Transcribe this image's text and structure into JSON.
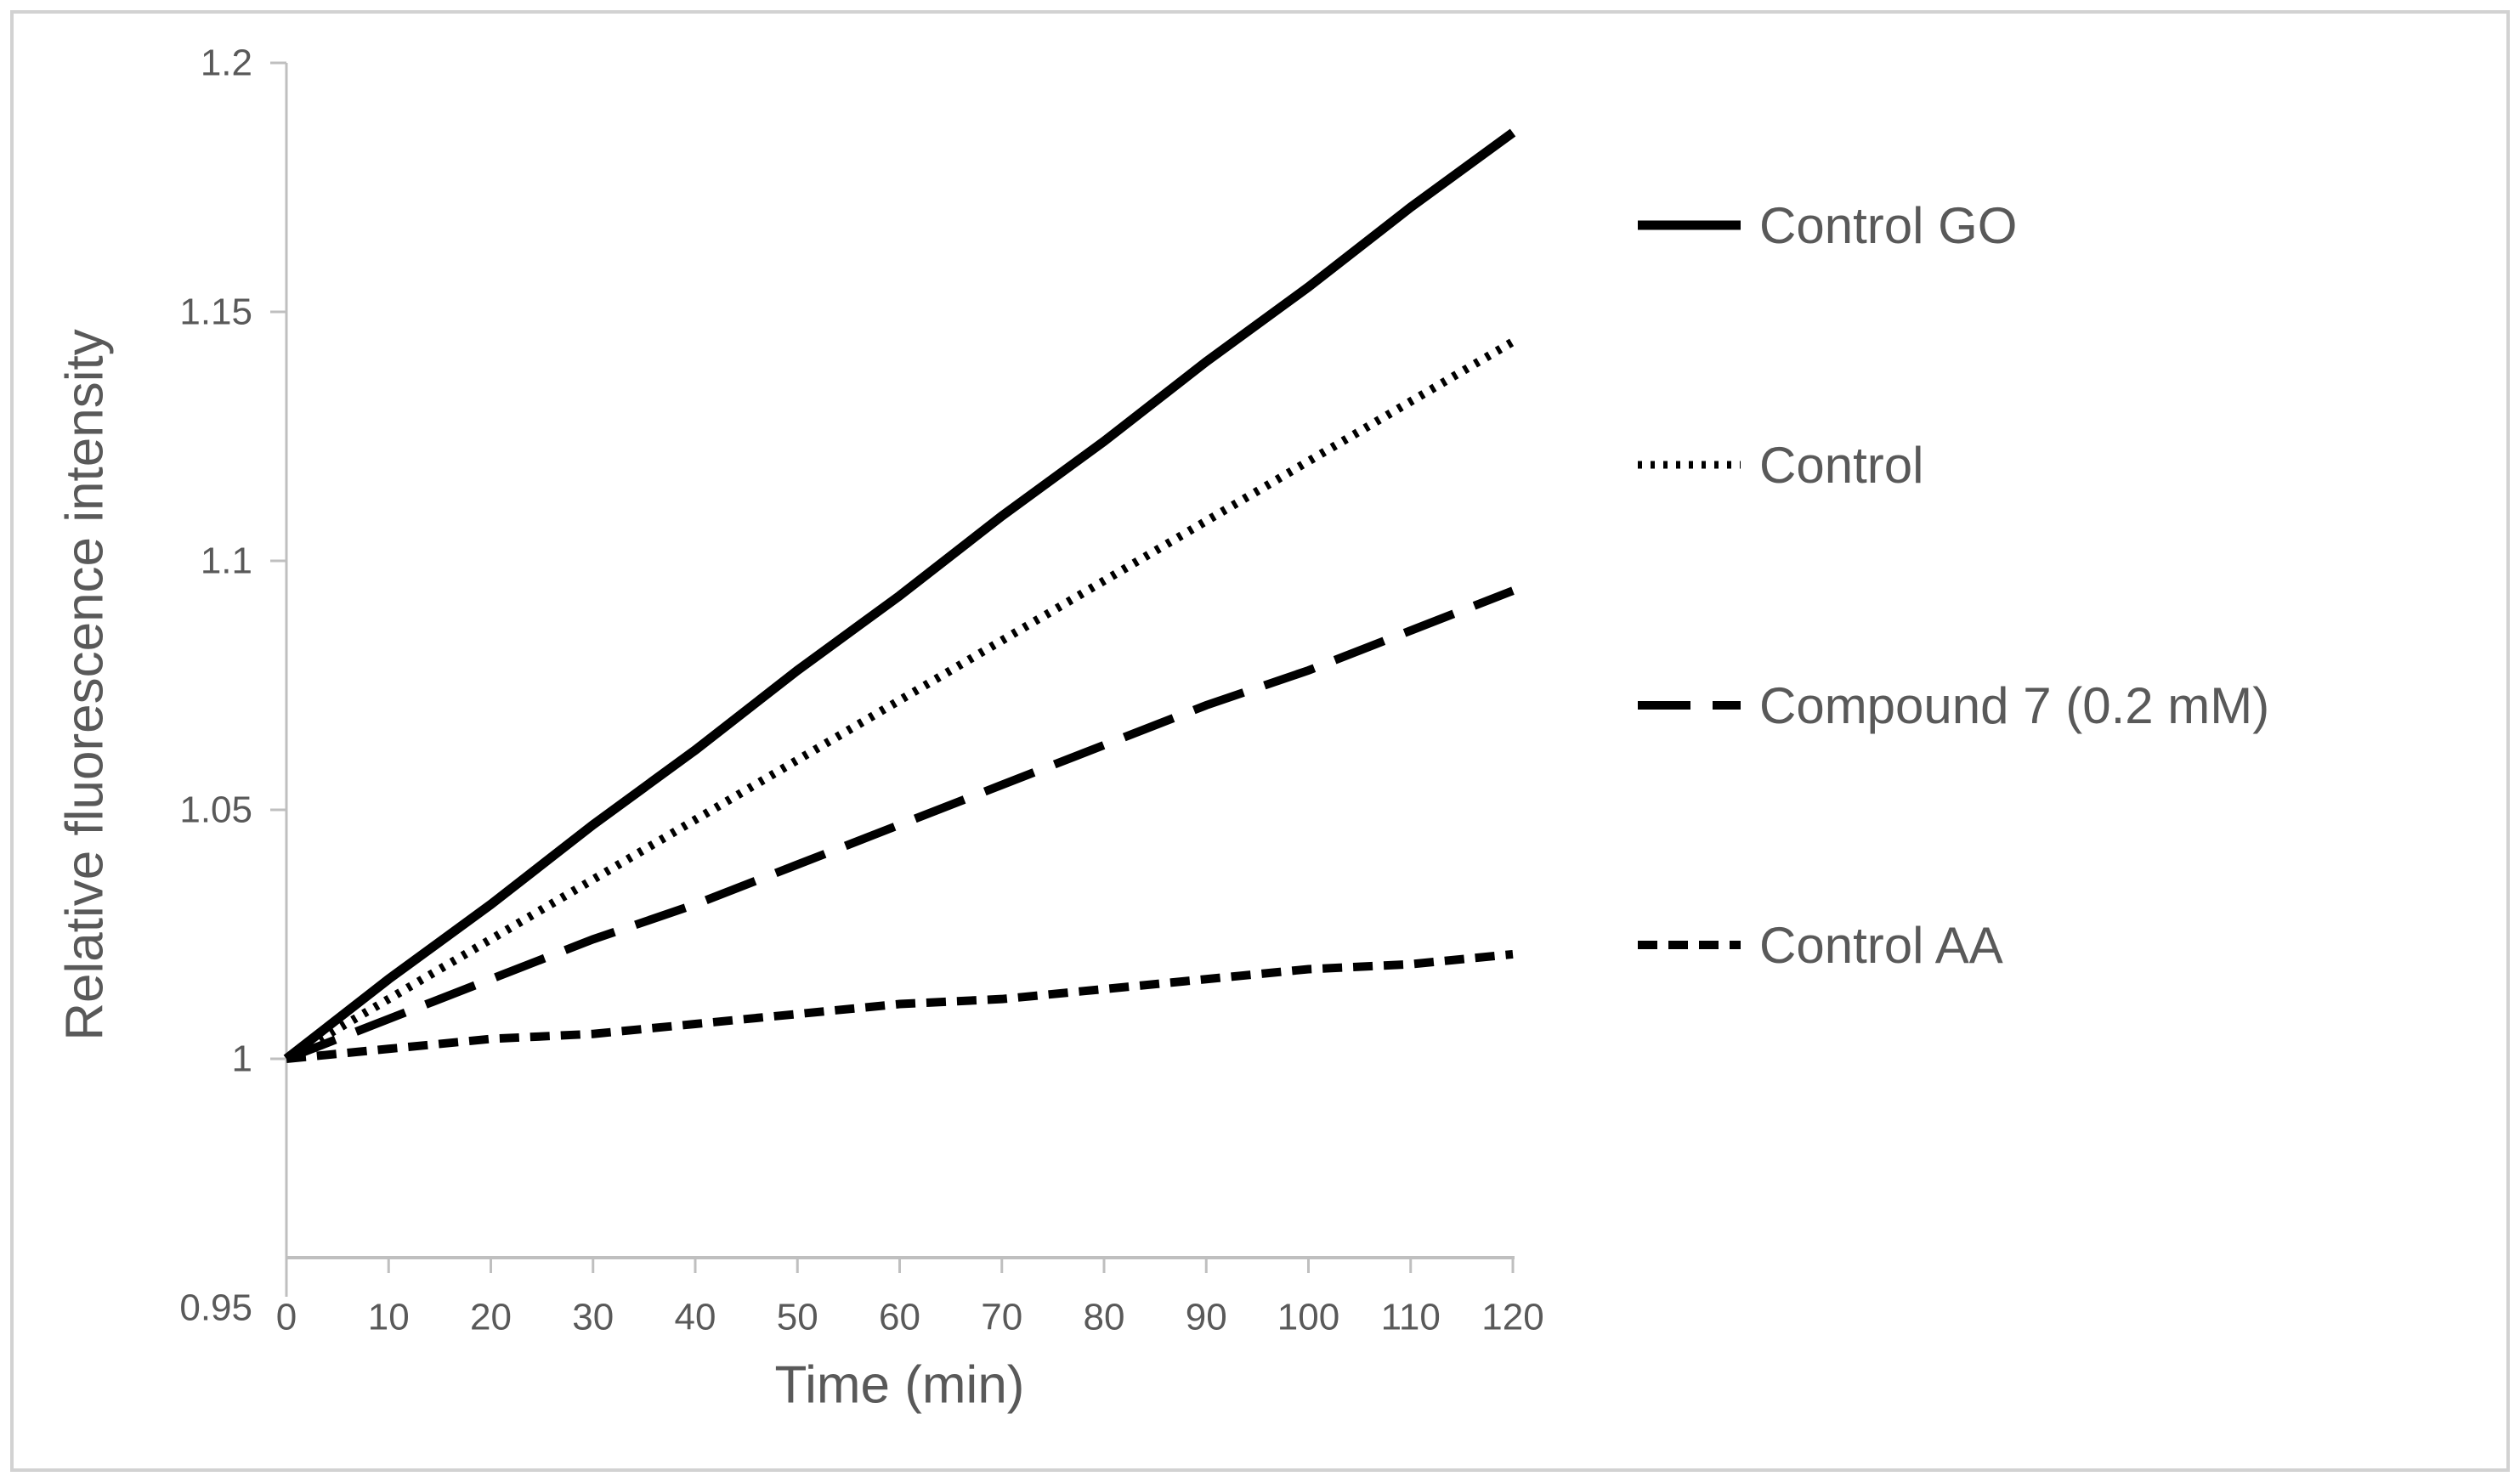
{
  "chart_data": {
    "type": "line",
    "title": "",
    "xlabel": "Time (min)",
    "ylabel": "Relative fluorescence intensity",
    "xlim": [
      0,
      120
    ],
    "ylim": [
      0.95,
      1.2
    ],
    "grid": false,
    "legend_position": "right",
    "line_color": "#000000",
    "axis_color": "#bfbfbf",
    "text_color": "#595959",
    "xticks": [
      0,
      10,
      20,
      30,
      40,
      50,
      60,
      70,
      80,
      90,
      100,
      110,
      120
    ],
    "ytick_values": [
      1.2,
      1.15,
      1.1,
      1.05,
      1.0,
      0.95
    ],
    "ytick_labels": [
      "1.2",
      "1.15",
      "1.1",
      "1.05",
      "1",
      "0.95"
    ],
    "x": [
      0,
      10,
      20,
      30,
      40,
      50,
      60,
      70,
      80,
      90,
      100,
      110,
      120
    ],
    "series": [
      {
        "name": "Control GO",
        "style": "solid",
        "values": [
          1.0,
          1.016,
          1.031,
          1.047,
          1.062,
          1.078,
          1.093,
          1.109,
          1.124,
          1.14,
          1.155,
          1.171,
          1.186
        ]
      },
      {
        "name": "Control",
        "style": "dotted",
        "values": [
          1.0,
          1.012,
          1.024,
          1.036,
          1.048,
          1.06,
          1.072,
          1.084,
          1.096,
          1.108,
          1.12,
          1.132,
          1.144
        ]
      },
      {
        "name": "Compound 7 (0.2 mM)",
        "style": "long-dash",
        "values": [
          1.0,
          1.008,
          1.016,
          1.024,
          1.031,
          1.039,
          1.047,
          1.055,
          1.063,
          1.071,
          1.078,
          1.086,
          1.094
        ]
      },
      {
        "name": "Control AA",
        "style": "short-dash",
        "values": [
          1.0,
          1.002,
          1.004,
          1.005,
          1.007,
          1.009,
          1.011,
          1.012,
          1.014,
          1.016,
          1.018,
          1.019,
          1.021
        ]
      }
    ]
  }
}
